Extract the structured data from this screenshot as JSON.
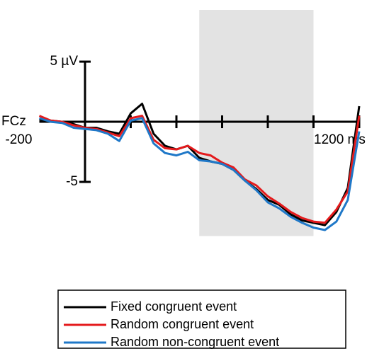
{
  "chart_data": {
    "type": "line",
    "annotation": "FCz",
    "x": [
      -200,
      -150,
      -100,
      -50,
      0,
      50,
      100,
      150,
      200,
      250,
      300,
      350,
      400,
      450,
      500,
      550,
      600,
      650,
      700,
      750,
      800,
      850,
      900,
      950,
      1000,
      1050,
      1100,
      1150,
      1200
    ],
    "series": [
      {
        "name": "Fixed congruent event",
        "color": "#000000",
        "values": [
          0.2,
          0.1,
          0,
          -0.2,
          -0.5,
          -0.5,
          -0.8,
          -1,
          0.7,
          1.5,
          -1,
          -2,
          -2.3,
          -2,
          -3,
          -3.3,
          -3.5,
          -4,
          -4.9,
          -5.6,
          -6.5,
          -6.9,
          -7.7,
          -8.2,
          -8.4,
          -8.6,
          -7.5,
          -5.5,
          1.3
        ]
      },
      {
        "name": "Random congruent event",
        "color": "#e41a1c",
        "values": [
          0.5,
          0.1,
          0,
          -0.3,
          -0.5,
          -0.6,
          -0.9,
          -1.2,
          0.3,
          0.5,
          -1.5,
          -2.2,
          -2.3,
          -2,
          -2.6,
          -2.8,
          -3.4,
          -3.8,
          -4.8,
          -5.3,
          -6.2,
          -6.8,
          -7.5,
          -8,
          -8.3,
          -8.4,
          -7.3,
          -5.8,
          0.5
        ]
      },
      {
        "name": "Random non-congruent event",
        "color": "#1f78c8",
        "values": [
          0.3,
          0,
          -0.1,
          -0.5,
          -0.6,
          -0.7,
          -1,
          -1.6,
          0.1,
          0.3,
          -1.8,
          -2.6,
          -2.8,
          -2.5,
          -3.2,
          -3.3,
          -3.5,
          -4,
          -4.9,
          -5.7,
          -6.7,
          -7.2,
          -7.9,
          -8.4,
          -8.8,
          -9,
          -8.3,
          -6.5,
          -0.8
        ]
      }
    ],
    "xlim": [
      -200,
      1200
    ],
    "xticks": [
      -200,
      {
        "value": 1200,
        "label": "1200 ms"
      }
    ],
    "xminor_ticks": [
      200,
      400,
      600,
      800,
      1000
    ],
    "ylim": [
      -9.5,
      9.3
    ],
    "yticks": [
      {
        "value": 5,
        "label": "5 µV"
      },
      {
        "value": -5,
        "label": "-5"
      }
    ],
    "shaded_region": [
      500,
      1000
    ],
    "legend": "bottom"
  }
}
